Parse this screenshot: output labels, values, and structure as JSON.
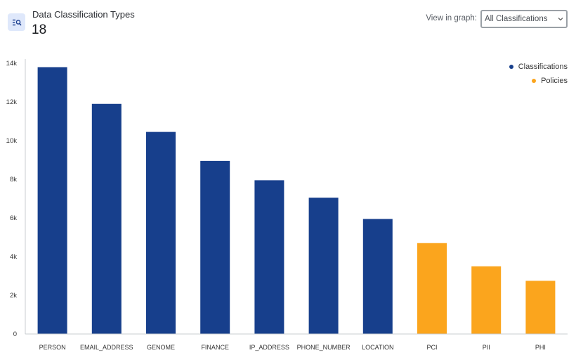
{
  "header": {
    "title": "Data Classification Types",
    "count": "18",
    "icon": "search-list-icon"
  },
  "controls": {
    "view_label": "View in graph:",
    "selected": "All Classifications",
    "caret_icon": "chevron-down-icon"
  },
  "legend": [
    {
      "label": "Classifications",
      "color": "#173f8c"
    },
    {
      "label": "Policies",
      "color": "#fba51d"
    }
  ],
  "chart_data": {
    "type": "bar",
    "categories": [
      "PERSON",
      "EMAIL_ADDRESS",
      "GENOME",
      "FINANCE",
      "IP_ADDRESS",
      "PHONE_NUMBER",
      "LOCATION",
      "PCI",
      "PII",
      "PHI"
    ],
    "series": [
      {
        "name": "Classifications",
        "color": "#173f8c",
        "values": [
          13800,
          11900,
          10450,
          8950,
          7950,
          7050,
          5950,
          null,
          null,
          null
        ]
      },
      {
        "name": "Policies",
        "color": "#fba51d",
        "values": [
          null,
          null,
          null,
          null,
          null,
          null,
          null,
          4700,
          3500,
          2750
        ]
      }
    ],
    "yticks": [
      0,
      2000,
      4000,
      6000,
      8000,
      10000,
      12000,
      14000
    ],
    "ytick_labels": [
      "0",
      "2k",
      "4k",
      "6k",
      "8k",
      "10k",
      "12k",
      "14k"
    ],
    "ylim": [
      0,
      14000
    ],
    "grid": false,
    "legend_position": "top-right"
  }
}
